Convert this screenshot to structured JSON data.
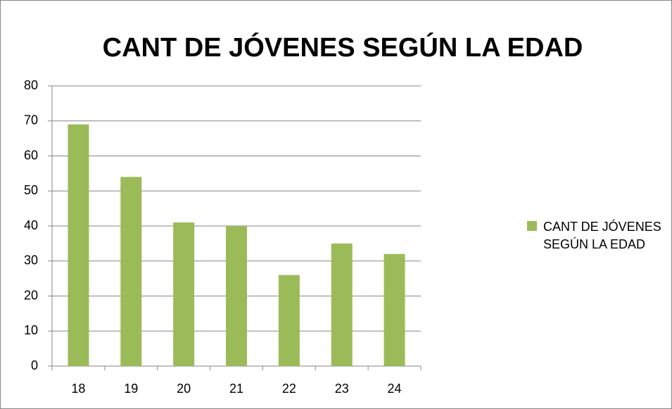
{
  "chart_data": {
    "type": "bar",
    "title": "CANT DE JÓVENES SEGÚN LA EDAD",
    "categories": [
      "18",
      "19",
      "20",
      "21",
      "22",
      "23",
      "24"
    ],
    "series": [
      {
        "name": "CANT DE JÓVENES SEGÚN LA EDAD",
        "color": "#9bbb59",
        "values": [
          69,
          54,
          41,
          40,
          26,
          35,
          32
        ]
      }
    ],
    "ylim": [
      0,
      80
    ],
    "yticks": [
      0,
      10,
      20,
      30,
      40,
      50,
      60,
      70,
      80
    ],
    "grid": true,
    "legend": "right"
  }
}
